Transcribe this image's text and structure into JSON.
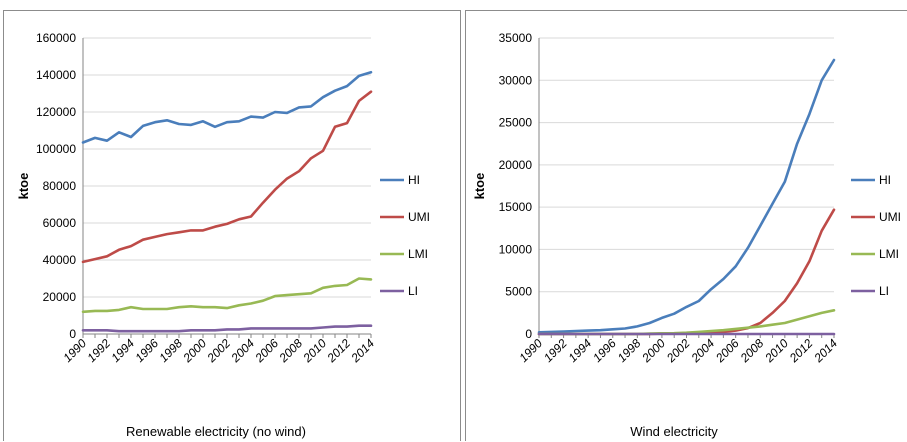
{
  "chart_data": [
    {
      "type": "line",
      "title": "Renewable electricity (no wind)",
      "ylabel": "ktoe",
      "xlabel": "",
      "ylim": [
        0,
        160000
      ],
      "yticks": [
        0,
        20000,
        40000,
        60000,
        80000,
        100000,
        120000,
        140000,
        160000
      ],
      "x": [
        1990,
        1991,
        1992,
        1993,
        1994,
        1995,
        1996,
        1997,
        1998,
        1999,
        2000,
        2001,
        2002,
        2003,
        2004,
        2005,
        2006,
        2007,
        2008,
        2009,
        2010,
        2011,
        2012,
        2013,
        2014
      ],
      "xticks": [
        1990,
        1992,
        1994,
        1996,
        1998,
        2000,
        2002,
        2004,
        2006,
        2008,
        2010,
        2012,
        2014
      ],
      "grid": "horizontal",
      "legend": "right",
      "series": [
        {
          "name": "HI",
          "color": "#4a7ebb",
          "values": [
            103500,
            106000,
            104500,
            109000,
            106500,
            112500,
            114500,
            115500,
            113500,
            113000,
            115000,
            112000,
            114500,
            115000,
            117500,
            117000,
            120000,
            119500,
            122500,
            123000,
            128000,
            131500,
            134000,
            139500,
            141500
          ]
        },
        {
          "name": "UMI",
          "color": "#be4b48",
          "values": [
            39000,
            40500,
            42000,
            45500,
            47500,
            51000,
            52500,
            54000,
            55000,
            56000,
            56000,
            58000,
            59500,
            62000,
            63500,
            71000,
            78000,
            84000,
            88000,
            95000,
            99000,
            112000,
            114000,
            126000,
            131000
          ]
        },
        {
          "name": "LMI",
          "color": "#98b954",
          "values": [
            12000,
            12500,
            12500,
            13000,
            14500,
            13500,
            13500,
            13500,
            14500,
            15000,
            14500,
            14500,
            14000,
            15500,
            16500,
            18000,
            20500,
            21000,
            21500,
            22000,
            25000,
            26000,
            26500,
            30000,
            29500
          ]
        },
        {
          "name": "LI",
          "color": "#7d60a0",
          "values": [
            2000,
            2000,
            2000,
            1500,
            1500,
            1500,
            1500,
            1500,
            1500,
            2000,
            2000,
            2000,
            2500,
            2500,
            3000,
            3000,
            3000,
            3000,
            3000,
            3000,
            3500,
            4000,
            4000,
            4500,
            4500
          ]
        }
      ]
    },
    {
      "type": "line",
      "title": "Wind electricity",
      "ylabel": "ktoe",
      "xlabel": "",
      "ylim": [
        0,
        35000
      ],
      "yticks": [
        0,
        5000,
        10000,
        15000,
        20000,
        25000,
        30000,
        35000
      ],
      "x": [
        1990,
        1991,
        1992,
        1993,
        1994,
        1995,
        1996,
        1997,
        1998,
        1999,
        2000,
        2001,
        2002,
        2003,
        2004,
        2005,
        2006,
        2007,
        2008,
        2009,
        2010,
        2011,
        2012,
        2013,
        2014
      ],
      "xticks": [
        1990,
        1992,
        1994,
        1996,
        1998,
        2000,
        2002,
        2004,
        2006,
        2008,
        2010,
        2012,
        2014
      ],
      "grid": "horizontal",
      "legend": "right",
      "series": [
        {
          "name": "HI",
          "color": "#4a7ebb",
          "values": [
            200,
            250,
            300,
            350,
            400,
            450,
            550,
            650,
            900,
            1300,
            1900,
            2400,
            3200,
            3900,
            5300,
            6500,
            8000,
            10200,
            12800,
            15400,
            18000,
            22500,
            26000,
            30000,
            32400
          ]
        },
        {
          "name": "UMI",
          "color": "#be4b48",
          "values": [
            0,
            0,
            0,
            0,
            0,
            0,
            0,
            0,
            0,
            0,
            50,
            50,
            80,
            100,
            150,
            250,
            400,
            700,
            1300,
            2500,
            3900,
            6000,
            8600,
            12200,
            14700
          ]
        },
        {
          "name": "LMI",
          "color": "#98b954",
          "values": [
            0,
            0,
            0,
            0,
            0,
            0,
            0,
            0,
            0,
            50,
            80,
            100,
            150,
            250,
            350,
            450,
            600,
            750,
            900,
            1100,
            1300,
            1700,
            2100,
            2500,
            2800
          ]
        },
        {
          "name": "LI",
          "color": "#7d60a0",
          "values": [
            0,
            0,
            0,
            0,
            0,
            0,
            0,
            0,
            0,
            0,
            0,
            0,
            0,
            0,
            0,
            0,
            0,
            0,
            0,
            0,
            0,
            0,
            0,
            0,
            0
          ]
        }
      ]
    }
  ]
}
